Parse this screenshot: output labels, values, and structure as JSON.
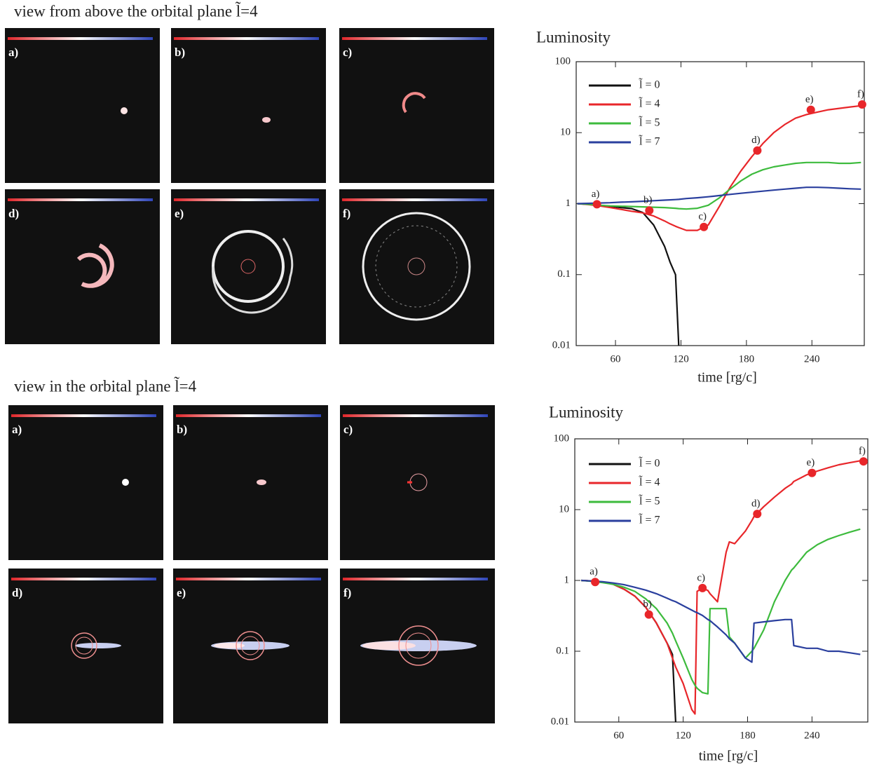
{
  "sections": [
    {
      "title": "view from above the orbital plane  l̃=4",
      "panels": [
        "a)",
        "b)",
        "c)",
        "d)",
        "e)",
        "f)"
      ]
    },
    {
      "title": "view in the orbital plane  l̃=4",
      "panels": [
        "a)",
        "b)",
        "c)",
        "d)",
        "e)",
        "f)"
      ]
    }
  ],
  "chart_data": [
    {
      "type": "line",
      "title": "Luminosity",
      "x_label": "time [rg/c]",
      "yscale": "log",
      "grid": false,
      "xlim": [
        24,
        288
      ],
      "xticks": [
        60,
        120,
        180,
        240
      ],
      "ylim": [
        0.01,
        100
      ],
      "yticks": [
        0.01,
        0.1,
        1,
        10,
        100
      ],
      "x": [
        25,
        35,
        45,
        55,
        65,
        75,
        85,
        95,
        105,
        110,
        115,
        118,
        125,
        135,
        145,
        155,
        165,
        175,
        185,
        195,
        205,
        215,
        225,
        235,
        245,
        255,
        265,
        275,
        285
      ],
      "series": [
        {
          "name": "l̃ = 0",
          "color": "#111111",
          "values": [
            1,
            0.98,
            0.95,
            0.92,
            0.88,
            0.85,
            0.75,
            0.5,
            0.25,
            0.15,
            0.1,
            0.01,
            null,
            null,
            null,
            null,
            null,
            null,
            null,
            null,
            null,
            null,
            null,
            null,
            null,
            null,
            null,
            null,
            null
          ]
        },
        {
          "name": "l̃ = 4",
          "color": "#e8262a",
          "values": [
            1,
            0.97,
            0.93,
            0.88,
            0.83,
            0.78,
            0.74,
            0.67,
            0.57,
            0.52,
            0.48,
            0.46,
            0.42,
            0.42,
            0.5,
            0.9,
            1.7,
            2.9,
            4.6,
            7,
            10,
            13,
            16,
            18,
            19.5,
            21,
            22,
            23,
            24
          ]
        },
        {
          "name": "l̃ = 5",
          "color": "#3dbb3d",
          "values": [
            1,
            0.98,
            0.95,
            0.93,
            0.92,
            0.91,
            0.9,
            0.89,
            0.88,
            0.87,
            0.86,
            0.85,
            0.84,
            0.86,
            0.95,
            1.2,
            1.6,
            2.1,
            2.6,
            3,
            3.3,
            3.5,
            3.7,
            3.8,
            3.8,
            3.8,
            3.7,
            3.7,
            3.8
          ]
        },
        {
          "name": "l̃ = 7",
          "color": "#2a3f9e",
          "values": [
            1,
            1.01,
            1.02,
            1.03,
            1.05,
            1.06,
            1.08,
            1.1,
            1.12,
            1.13,
            1.14,
            1.15,
            1.18,
            1.21,
            1.25,
            1.3,
            1.35,
            1.4,
            1.45,
            1.5,
            1.55,
            1.6,
            1.65,
            1.7,
            1.7,
            1.68,
            1.65,
            1.62,
            1.6
          ]
        }
      ],
      "markers": [
        {
          "label": "a)",
          "x": 43,
          "y": 0.98
        },
        {
          "label": "b)",
          "x": 91,
          "y": 0.8
        },
        {
          "label": "c)",
          "x": 141,
          "y": 0.47
        },
        {
          "label": "d)",
          "x": 190,
          "y": 5.6
        },
        {
          "label": "e)",
          "x": 239,
          "y": 21
        },
        {
          "label": "f)",
          "x": 286,
          "y": 25
        }
      ]
    },
    {
      "type": "line",
      "title": "Luminosity",
      "x_label": "time [rg/c]",
      "yscale": "log",
      "grid": false,
      "xlim": [
        19,
        292
      ],
      "xticks": [
        60,
        120,
        180,
        240
      ],
      "ylim": [
        0.01,
        100
      ],
      "yticks": [
        0.01,
        0.1,
        1,
        10,
        100
      ],
      "x": [
        25,
        35,
        45,
        55,
        65,
        75,
        85,
        95,
        105,
        110,
        113,
        120,
        128,
        131,
        133,
        138,
        143,
        145,
        152,
        160,
        163,
        168,
        178,
        184,
        186,
        195,
        205,
        215,
        221,
        223,
        235,
        245,
        255,
        265,
        275,
        285
      ],
      "series": [
        {
          "name": "l̃ = 0",
          "color": "#111111",
          "values": [
            1,
            0.98,
            0.95,
            0.88,
            0.75,
            0.6,
            0.42,
            0.25,
            0.13,
            0.09,
            0.01,
            null,
            null,
            null,
            null,
            null,
            null,
            null,
            null,
            null,
            null,
            null,
            null,
            null,
            null,
            null,
            null,
            null,
            null,
            null,
            null,
            null,
            null,
            null,
            null,
            null
          ]
        },
        {
          "name": "l̃ = 4",
          "color": "#e8262a",
          "values": [
            1,
            0.98,
            0.95,
            0.88,
            0.75,
            0.6,
            0.42,
            0.25,
            0.13,
            0.08,
            0.06,
            0.035,
            0.015,
            0.013,
            0.7,
            0.78,
            0.72,
            0.65,
            0.5,
            2.5,
            3.5,
            3.3,
            5,
            7,
            8,
            11,
            15,
            20,
            23,
            25,
            31,
            35,
            39,
            43,
            46,
            49
          ]
        },
        {
          "name": "l̃ = 5",
          "color": "#3dbb3d",
          "values": [
            1,
            0.97,
            0.93,
            0.88,
            0.8,
            0.7,
            0.55,
            0.4,
            0.25,
            0.18,
            0.14,
            0.08,
            0.04,
            0.033,
            0.03,
            0.026,
            0.025,
            0.4,
            0.4,
            0.4,
            0.16,
            0.13,
            0.08,
            0.1,
            0.11,
            0.2,
            0.5,
            1,
            1.4,
            1.5,
            2.5,
            3.2,
            3.8,
            4.3,
            4.8,
            5.3
          ]
        },
        {
          "name": "l̃ = 7",
          "color": "#2a3f9e",
          "values": [
            1,
            0.98,
            0.96,
            0.92,
            0.87,
            0.8,
            0.73,
            0.65,
            0.56,
            0.52,
            0.5,
            0.44,
            0.38,
            0.36,
            0.35,
            0.32,
            0.28,
            0.27,
            0.22,
            0.17,
            0.15,
            0.13,
            0.08,
            0.07,
            0.25,
            0.26,
            0.27,
            0.28,
            0.28,
            0.12,
            0.11,
            0.11,
            0.1,
            0.1,
            0.095,
            0.09
          ]
        }
      ],
      "markers": [
        {
          "label": "a)",
          "x": 38,
          "y": 0.95
        },
        {
          "label": "b)",
          "x": 88,
          "y": 0.33
        },
        {
          "label": "c)",
          "x": 138,
          "y": 0.78
        },
        {
          "label": "d)",
          "x": 189,
          "y": 8.7
        },
        {
          "label": "e)",
          "x": 240,
          "y": 33
        },
        {
          "label": "f)",
          "x": 288,
          "y": 48
        }
      ]
    }
  ]
}
